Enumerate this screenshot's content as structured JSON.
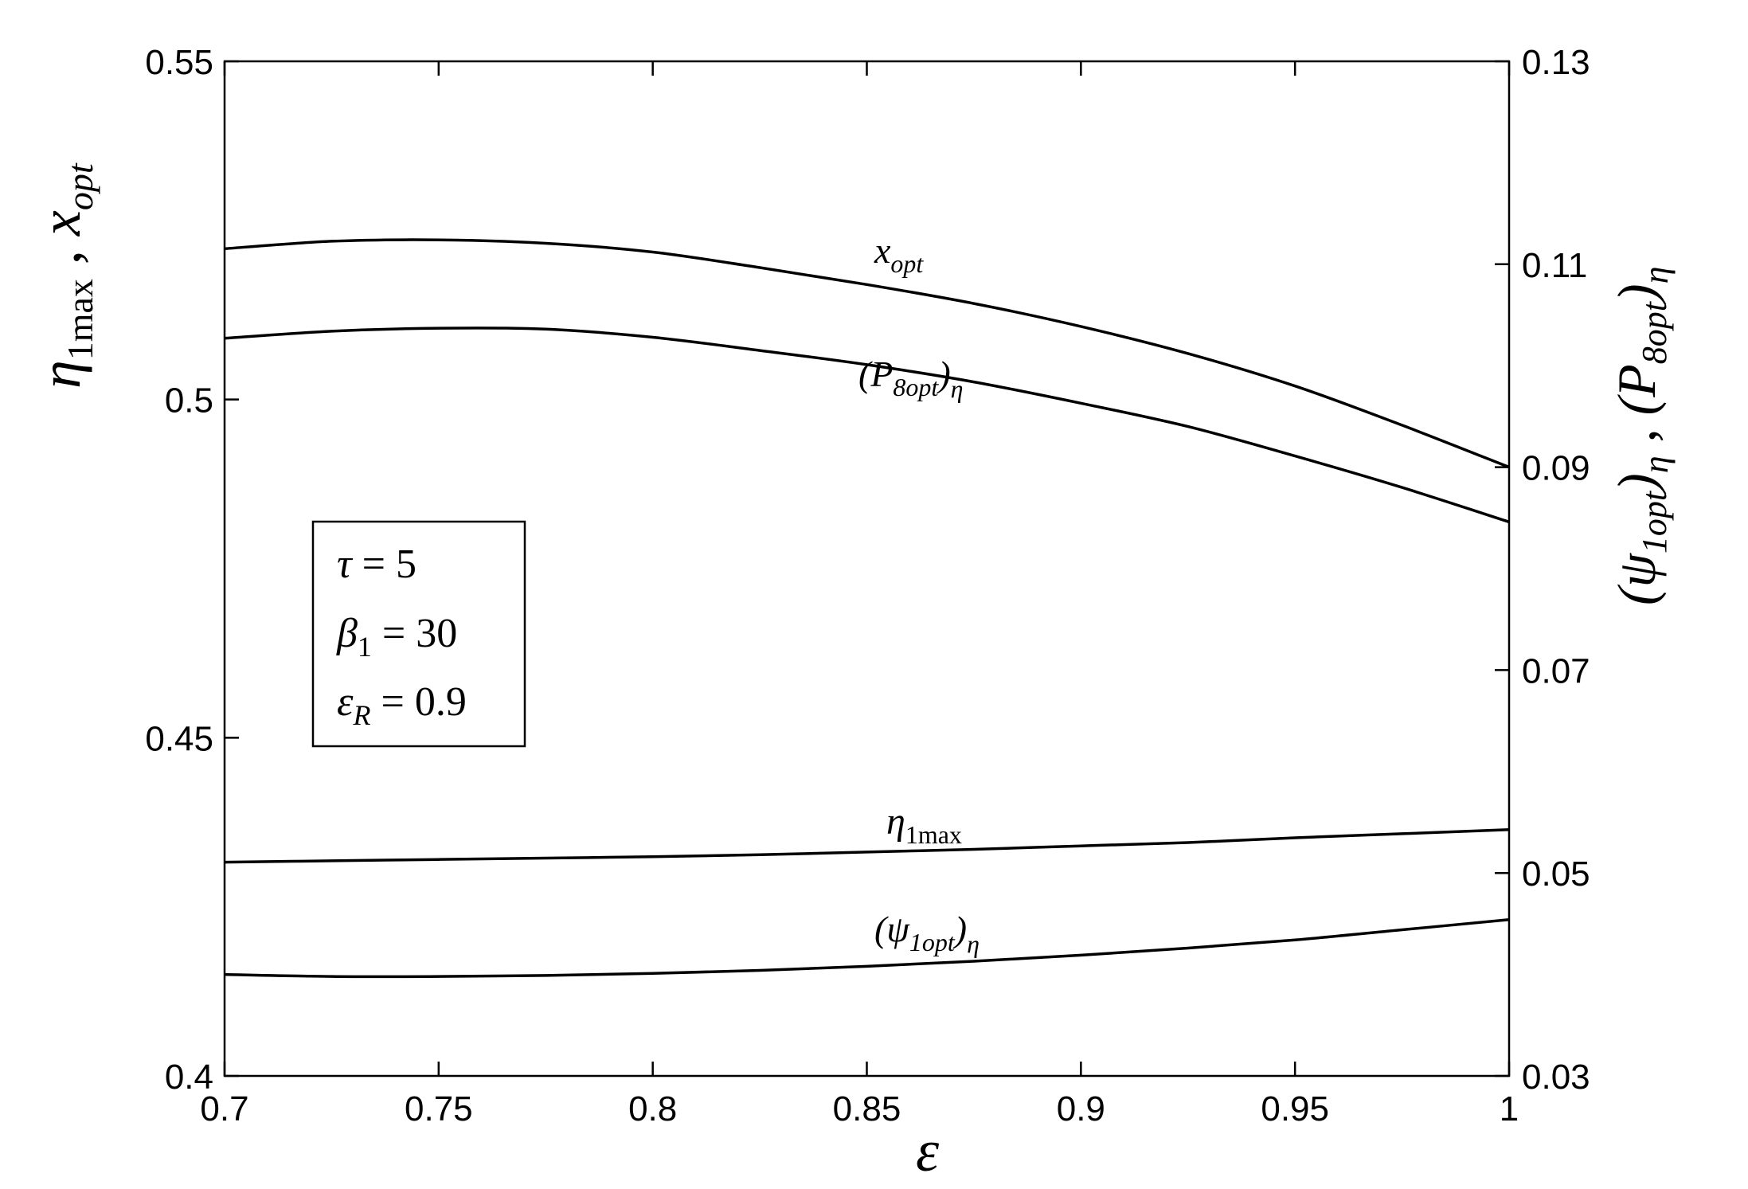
{
  "chart_data": {
    "type": "line",
    "xlabel": "ε",
    "ylabel_left": {
      "base": "η",
      "sub1": "1max",
      "sep": " , ",
      "base2": "x",
      "sub2": "opt"
    },
    "ylabel_right": {
      "part1_open": "(ψ",
      "part1_sub": "1opt",
      "part1_close": ")",
      "part1_sub2": "η",
      "sep": " , ",
      "part2_open": "(P",
      "part2_sub": "8opt",
      "part2_close": ")",
      "part2_sub2": "η"
    },
    "xlim": [
      0.7,
      1.0
    ],
    "ylim_left": [
      0.4,
      0.55
    ],
    "ylim_right": [
      0.03,
      0.13
    ],
    "x_ticks": [
      "0.7",
      "0.75",
      "0.8",
      "0.85",
      "0.9",
      "0.95",
      "1"
    ],
    "y_left_ticks": [
      "0.4",
      "0.45",
      "0.5",
      "0.55"
    ],
    "y_right_ticks": [
      "0.03",
      "0.05",
      "0.07",
      "0.09",
      "0.11",
      "0.13"
    ],
    "grid": false,
    "legend_box": {
      "lines": [
        {
          "sym": "τ",
          "sub": "",
          "rest": " = 5"
        },
        {
          "sym": "β",
          "sub": "1",
          "rest": " = 30"
        },
        {
          "sym": "ε",
          "sub": "R",
          "rest": " = 0.9"
        }
      ]
    },
    "x": [
      0.7,
      0.725,
      0.75,
      0.775,
      0.8,
      0.825,
      0.85,
      0.875,
      0.9,
      0.925,
      0.95,
      0.975,
      1.0
    ],
    "series": [
      {
        "name": "x_opt",
        "axis": "left",
        "label": {
          "base": "x",
          "sub": "opt"
        },
        "values": [
          0.5223,
          0.5234,
          0.5236,
          0.5231,
          0.5218,
          0.5195,
          0.517,
          0.5142,
          0.5108,
          0.5068,
          0.502,
          0.4962,
          0.49
        ]
      },
      {
        "name": "(P_8opt)_eta",
        "axis": "right",
        "label": {
          "open": "(P",
          "sub": "8opt",
          "close": ")",
          "sub2": "η"
        },
        "values": [
          0.1027,
          0.1034,
          0.1037,
          0.1036,
          0.1028,
          0.1015,
          0.1001,
          0.0984,
          0.0963,
          0.094,
          0.0911,
          0.088,
          0.0846
        ]
      },
      {
        "name": "eta_1max",
        "axis": "left",
        "label": {
          "base": "η",
          "sub": "1max"
        },
        "values": [
          0.4316,
          0.4318,
          0.432,
          0.4322,
          0.4324,
          0.4327,
          0.4331,
          0.4335,
          0.434,
          0.4345,
          0.4352,
          0.4358,
          0.4364
        ]
      },
      {
        "name": "(psi_1opt)_eta",
        "axis": "right",
        "label": {
          "open": "(ψ",
          "sub": "1opt",
          "close": ")",
          "sub2": "η"
        },
        "values": [
          0.04,
          0.0398,
          0.0398,
          0.0399,
          0.0401,
          0.0404,
          0.0408,
          0.0413,
          0.0419,
          0.0426,
          0.0434,
          0.0444,
          0.0454
        ]
      }
    ]
  }
}
